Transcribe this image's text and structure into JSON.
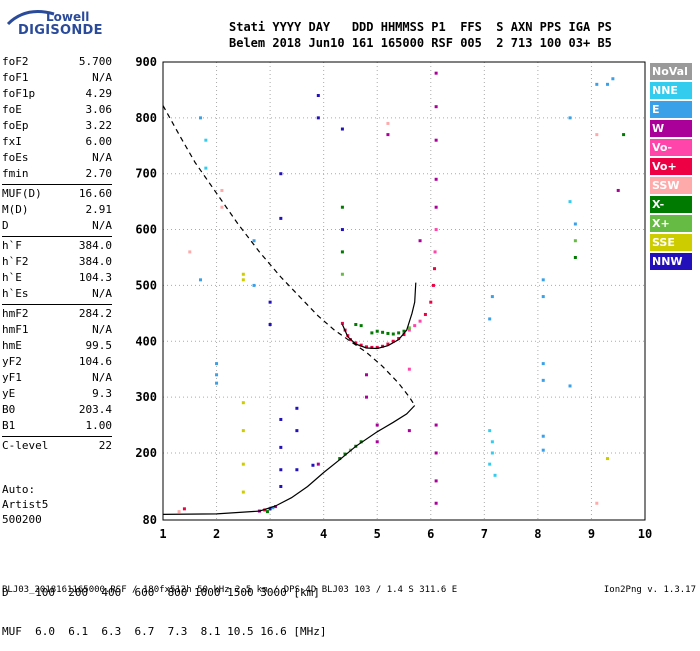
{
  "logo": {
    "line1": "Lowell",
    "line2": "DIGISONDE"
  },
  "header": {
    "line1": "Stati YYYY DAY   DDD HHMMSS P1  FFS  S AXN PPS IGA PS",
    "line2": "Belem 2018 Jun10 161 165000 RSF 005  2 713 100 03+ B5"
  },
  "params": [
    {
      "name": "foF2",
      "value": "5.700"
    },
    {
      "name": "foF1",
      "value": "N/A"
    },
    {
      "name": "foF1p",
      "value": "4.29"
    },
    {
      "name": "foE",
      "value": "3.06"
    },
    {
      "name": "foEp",
      "value": "3.22"
    },
    {
      "name": "fxI",
      "value": "6.00"
    },
    {
      "name": "foEs",
      "value": "N/A"
    },
    {
      "name": "fmin",
      "value": "2.70"
    },
    {
      "name": "MUF(D)",
      "value": "16.60"
    },
    {
      "name": "M(D)",
      "value": "2.91"
    },
    {
      "name": "D",
      "value": "N/A"
    },
    {
      "name": "h`F",
      "value": "384.0"
    },
    {
      "name": "h`F2",
      "value": "384.0"
    },
    {
      "name": "h`E",
      "value": "104.3"
    },
    {
      "name": "h`Es",
      "value": "N/A"
    },
    {
      "name": "hmF2",
      "value": "284.2"
    },
    {
      "name": "hmF1",
      "value": "N/A"
    },
    {
      "name": "hmE",
      "value": "99.5"
    },
    {
      "name": "yF2",
      "value": "104.6"
    },
    {
      "name": "yF1",
      "value": "N/A"
    },
    {
      "name": "yE",
      "value": "9.3"
    },
    {
      "name": "B0",
      "value": "203.4"
    },
    {
      "name": "B1",
      "value": "1.00"
    },
    {
      "name": "C-level",
      "value": "22"
    }
  ],
  "autoscaling": {
    "line1": "Auto:",
    "line2": "Artist5",
    "line3": "500200"
  },
  "muf_table": {
    "line1": "D    100  200  400  600  800 1000 1500 3000 [km]",
    "line2": "MUF  6.0  6.1  6.3  6.7  7.3  8.1 10.5 16.6 [MHz]"
  },
  "footer": "BLJ03_2018161165000.RSF / 180fx512h 50 kHz 2.5 km / DPS-4D BLJ03 103 / 1.4 S 311.6 E",
  "version": "Ion2Png v. 1.3.17",
  "legend": [
    {
      "label": "NoVal",
      "color": "#9a9a9a"
    },
    {
      "label": "NNE",
      "color": "#33ccee"
    },
    {
      "label": "E",
      "color": "#3aa0e8"
    },
    {
      "label": "W",
      "color": "#aa0099"
    },
    {
      "label": "Vo-",
      "color": "#ff44aa"
    },
    {
      "label": "Vo+",
      "color": "#ee0044"
    },
    {
      "label": "SSW",
      "color": "#ffaaaa"
    },
    {
      "label": "X-",
      "color": "#007a00"
    },
    {
      "label": "X+",
      "color": "#66bb44"
    },
    {
      "label": "SSE",
      "color": "#cccc00"
    },
    {
      "label": "NNW",
      "color": "#2211bb"
    }
  ],
  "chart_data": {
    "type": "scatter",
    "xlim": [
      1,
      10
    ],
    "ylim": [
      80,
      900
    ],
    "xticks": [
      "1",
      "2",
      "3",
      "4",
      "5",
      "6",
      "7",
      "8",
      "9",
      "10"
    ],
    "yticks": [
      "80",
      "200",
      "300",
      "400",
      "500",
      "600",
      "700",
      "800",
      "900"
    ],
    "grid": true,
    "profile_solid": [
      [
        1.0,
        90
      ],
      [
        2.0,
        91
      ],
      [
        2.8,
        96
      ],
      [
        3.1,
        105
      ],
      [
        3.4,
        120
      ],
      [
        3.7,
        140
      ],
      [
        4.0,
        165
      ],
      [
        4.3,
        188
      ],
      [
        4.6,
        212
      ],
      [
        5.0,
        238
      ],
      [
        5.3,
        255
      ],
      [
        5.55,
        270
      ],
      [
        5.7,
        285
      ]
    ],
    "profile_dashed": [
      [
        1.0,
        822
      ],
      [
        1.3,
        770
      ],
      [
        1.6,
        720
      ],
      [
        2.0,
        665
      ],
      [
        2.4,
        610
      ],
      [
        2.8,
        560
      ],
      [
        3.2,
        515
      ],
      [
        3.6,
        475
      ],
      [
        3.9,
        445
      ],
      [
        4.2,
        420
      ],
      [
        4.5,
        400
      ],
      [
        4.8,
        380
      ],
      [
        5.1,
        355
      ],
      [
        5.4,
        325
      ],
      [
        5.6,
        300
      ],
      [
        5.7,
        285
      ]
    ],
    "f2_trace": [
      [
        4.35,
        430
      ],
      [
        4.45,
        408
      ],
      [
        4.6,
        395
      ],
      [
        4.8,
        388
      ],
      [
        5.0,
        387
      ],
      [
        5.2,
        392
      ],
      [
        5.4,
        403
      ],
      [
        5.55,
        420
      ],
      [
        5.65,
        450
      ],
      [
        5.7,
        470
      ],
      [
        5.72,
        505
      ]
    ],
    "echo_points": [
      {
        "x": 4.35,
        "y": 432,
        "c": "#ee0044"
      },
      {
        "x": 4.4,
        "y": 420,
        "c": "#ee0044"
      },
      {
        "x": 4.45,
        "y": 410,
        "c": "#ee0044"
      },
      {
        "x": 4.5,
        "y": 403,
        "c": "#ee0044"
      },
      {
        "x": 4.6,
        "y": 397,
        "c": "#ee0044"
      },
      {
        "x": 4.7,
        "y": 393,
        "c": "#ee0044"
      },
      {
        "x": 4.8,
        "y": 390,
        "c": "#ee0044"
      },
      {
        "x": 4.9,
        "y": 389,
        "c": "#ee0044"
      },
      {
        "x": 5.0,
        "y": 389,
        "c": "#ee0044"
      },
      {
        "x": 5.1,
        "y": 391,
        "c": "#ee0044"
      },
      {
        "x": 5.2,
        "y": 395,
        "c": "#ee0044"
      },
      {
        "x": 5.3,
        "y": 400,
        "c": "#ee0044"
      },
      {
        "x": 5.4,
        "y": 405,
        "c": "#ee0044"
      },
      {
        "x": 5.5,
        "y": 412,
        "c": "#ee0044"
      },
      {
        "x": 5.6,
        "y": 420,
        "c": "#ff44aa"
      },
      {
        "x": 5.7,
        "y": 428,
        "c": "#ff44aa"
      },
      {
        "x": 5.8,
        "y": 436,
        "c": "#ff44aa"
      },
      {
        "x": 5.9,
        "y": 448,
        "c": "#ee0044"
      },
      {
        "x": 6.0,
        "y": 470,
        "c": "#ee0044"
      },
      {
        "x": 6.05,
        "y": 500,
        "c": "#ee0044"
      },
      {
        "x": 6.07,
        "y": 530,
        "c": "#ee0044"
      },
      {
        "x": 6.08,
        "y": 560,
        "c": "#ff44aa"
      },
      {
        "x": 4.9,
        "y": 415,
        "c": "#007a00"
      },
      {
        "x": 5.0,
        "y": 418,
        "c": "#007a00"
      },
      {
        "x": 5.1,
        "y": 416,
        "c": "#007a00"
      },
      {
        "x": 5.2,
        "y": 414,
        "c": "#007a00"
      },
      {
        "x": 5.3,
        "y": 413,
        "c": "#007a00"
      },
      {
        "x": 5.4,
        "y": 415,
        "c": "#007a00"
      },
      {
        "x": 5.5,
        "y": 418,
        "c": "#007a00"
      },
      {
        "x": 5.6,
        "y": 424,
        "c": "#66bb44"
      },
      {
        "x": 4.6,
        "y": 430,
        "c": "#007a00"
      },
      {
        "x": 4.7,
        "y": 428,
        "c": "#007a00"
      },
      {
        "x": 2.8,
        "y": 96,
        "c": "#aa0099"
      },
      {
        "x": 2.9,
        "y": 98,
        "c": "#ee0044"
      },
      {
        "x": 3.0,
        "y": 100,
        "c": "#2211bb"
      },
      {
        "x": 3.1,
        "y": 104,
        "c": "#aa0099"
      },
      {
        "x": 2.95,
        "y": 95,
        "c": "#007a00"
      },
      {
        "x": 3.05,
        "y": 102,
        "c": "#3aa0e8"
      },
      {
        "x": 4.3,
        "y": 190,
        "c": "#007a00"
      },
      {
        "x": 4.4,
        "y": 198,
        "c": "#007a00"
      },
      {
        "x": 4.5,
        "y": 205,
        "c": "#66bb44"
      },
      {
        "x": 4.6,
        "y": 212,
        "c": "#007a00"
      },
      {
        "x": 4.7,
        "y": 220,
        "c": "#007a00"
      },
      {
        "x": 3.9,
        "y": 180,
        "c": "#aa0099"
      },
      {
        "x": 3.8,
        "y": 178,
        "c": "#2211bb"
      },
      {
        "x": 3.2,
        "y": 700,
        "c": "#2211bb"
      },
      {
        "x": 3.2,
        "y": 620,
        "c": "#2211bb"
      },
      {
        "x": 3.9,
        "y": 800,
        "c": "#2211bb"
      },
      {
        "x": 3.9,
        "y": 840,
        "c": "#2211bb"
      },
      {
        "x": 4.35,
        "y": 780,
        "c": "#2211bb"
      },
      {
        "x": 4.35,
        "y": 640,
        "c": "#007a00"
      },
      {
        "x": 4.35,
        "y": 600,
        "c": "#2211bb"
      },
      {
        "x": 4.35,
        "y": 560,
        "c": "#007a00"
      },
      {
        "x": 4.35,
        "y": 520,
        "c": "#66bb44"
      },
      {
        "x": 6.1,
        "y": 880,
        "c": "#aa0099"
      },
      {
        "x": 6.1,
        "y": 820,
        "c": "#aa0099"
      },
      {
        "x": 6.1,
        "y": 760,
        "c": "#aa0099"
      },
      {
        "x": 6.1,
        "y": 690,
        "c": "#aa0099"
      },
      {
        "x": 6.1,
        "y": 640,
        "c": "#aa0099"
      },
      {
        "x": 6.1,
        "y": 600,
        "c": "#ff44aa"
      },
      {
        "x": 6.1,
        "y": 250,
        "c": "#aa0099"
      },
      {
        "x": 6.1,
        "y": 200,
        "c": "#aa0099"
      },
      {
        "x": 6.1,
        "y": 150,
        "c": "#aa0099"
      },
      {
        "x": 6.1,
        "y": 110,
        "c": "#aa0099"
      },
      {
        "x": 7.1,
        "y": 240,
        "c": "#33ccee"
      },
      {
        "x": 7.15,
        "y": 220,
        "c": "#33ccee"
      },
      {
        "x": 7.15,
        "y": 200,
        "c": "#33ccee"
      },
      {
        "x": 7.1,
        "y": 180,
        "c": "#33ccee"
      },
      {
        "x": 7.2,
        "y": 160,
        "c": "#33ccee"
      },
      {
        "x": 7.15,
        "y": 480,
        "c": "#3aa0e8"
      },
      {
        "x": 7.1,
        "y": 440,
        "c": "#3aa0e8"
      },
      {
        "x": 8.1,
        "y": 510,
        "c": "#3aa0e8"
      },
      {
        "x": 8.1,
        "y": 480,
        "c": "#3aa0e8"
      },
      {
        "x": 8.1,
        "y": 360,
        "c": "#3aa0e8"
      },
      {
        "x": 8.1,
        "y": 330,
        "c": "#3aa0e8"
      },
      {
        "x": 8.1,
        "y": 230,
        "c": "#3aa0e8"
      },
      {
        "x": 8.1,
        "y": 205,
        "c": "#3aa0e8"
      },
      {
        "x": 8.7,
        "y": 610,
        "c": "#3aa0e8"
      },
      {
        "x": 8.7,
        "y": 580,
        "c": "#66bb44"
      },
      {
        "x": 8.7,
        "y": 550,
        "c": "#007a00"
      },
      {
        "x": 9.1,
        "y": 860,
        "c": "#3aa0e8"
      },
      {
        "x": 9.3,
        "y": 860,
        "c": "#3aa0e8"
      },
      {
        "x": 9.4,
        "y": 870,
        "c": "#3aa0e8"
      },
      {
        "x": 9.6,
        "y": 770,
        "c": "#007a00"
      },
      {
        "x": 9.5,
        "y": 670,
        "c": "#aa0099"
      },
      {
        "x": 9.1,
        "y": 770,
        "c": "#ffaaaa"
      },
      {
        "x": 9.1,
        "y": 110,
        "c": "#ffaaaa"
      },
      {
        "x": 2.5,
        "y": 510,
        "c": "#cccc00"
      },
      {
        "x": 2.5,
        "y": 520,
        "c": "#cccc00"
      },
      {
        "x": 2.5,
        "y": 290,
        "c": "#cccc00"
      },
      {
        "x": 2.5,
        "y": 240,
        "c": "#cccc00"
      },
      {
        "x": 2.5,
        "y": 180,
        "c": "#cccc00"
      },
      {
        "x": 2.5,
        "y": 130,
        "c": "#cccc00"
      },
      {
        "x": 9.3,
        "y": 190,
        "c": "#cccc00"
      },
      {
        "x": 2.0,
        "y": 360,
        "c": "#3aa0e8"
      },
      {
        "x": 2.0,
        "y": 340,
        "c": "#3aa0e8"
      },
      {
        "x": 2.0,
        "y": 325,
        "c": "#3aa0e8"
      },
      {
        "x": 1.8,
        "y": 710,
        "c": "#33ccee"
      },
      {
        "x": 1.8,
        "y": 760,
        "c": "#33ccee"
      },
      {
        "x": 1.7,
        "y": 800,
        "c": "#3aa0e8"
      },
      {
        "x": 1.7,
        "y": 510,
        "c": "#3aa0e8"
      },
      {
        "x": 1.5,
        "y": 560,
        "c": "#ffaaaa"
      },
      {
        "x": 2.1,
        "y": 640,
        "c": "#ffaaaa"
      },
      {
        "x": 2.1,
        "y": 670,
        "c": "#ffaaaa"
      },
      {
        "x": 2.7,
        "y": 580,
        "c": "#3aa0e8"
      },
      {
        "x": 2.7,
        "y": 500,
        "c": "#3aa0e8"
      },
      {
        "x": 3.0,
        "y": 470,
        "c": "#2211bb"
      },
      {
        "x": 3.0,
        "y": 430,
        "c": "#2211bb"
      },
      {
        "x": 3.2,
        "y": 260,
        "c": "#2211bb"
      },
      {
        "x": 3.2,
        "y": 210,
        "c": "#2211bb"
      },
      {
        "x": 3.2,
        "y": 170,
        "c": "#2211bb"
      },
      {
        "x": 3.2,
        "y": 140,
        "c": "#2211bb"
      },
      {
        "x": 3.5,
        "y": 280,
        "c": "#2211bb"
      },
      {
        "x": 3.5,
        "y": 240,
        "c": "#2211bb"
      },
      {
        "x": 3.5,
        "y": 170,
        "c": "#2211bb"
      },
      {
        "x": 5.0,
        "y": 250,
        "c": "#aa0099"
      },
      {
        "x": 5.0,
        "y": 220,
        "c": "#aa0099"
      },
      {
        "x": 5.6,
        "y": 240,
        "c": "#aa0099"
      },
      {
        "x": 5.6,
        "y": 350,
        "c": "#ff44aa"
      },
      {
        "x": 4.8,
        "y": 300,
        "c": "#aa0099"
      },
      {
        "x": 4.8,
        "y": 340,
        "c": "#aa0099"
      },
      {
        "x": 5.8,
        "y": 580,
        "c": "#aa0099"
      },
      {
        "x": 5.2,
        "y": 770,
        "c": "#aa0099"
      },
      {
        "x": 5.2,
        "y": 790,
        "c": "#ffaaaa"
      },
      {
        "x": 8.6,
        "y": 800,
        "c": "#3aa0e8"
      },
      {
        "x": 8.6,
        "y": 320,
        "c": "#3aa0e8"
      },
      {
        "x": 8.6,
        "y": 650,
        "c": "#33ccee"
      },
      {
        "x": 1.4,
        "y": 100,
        "c": "#ee0044"
      },
      {
        "x": 1.3,
        "y": 95,
        "c": "#ffaaaa"
      }
    ]
  }
}
